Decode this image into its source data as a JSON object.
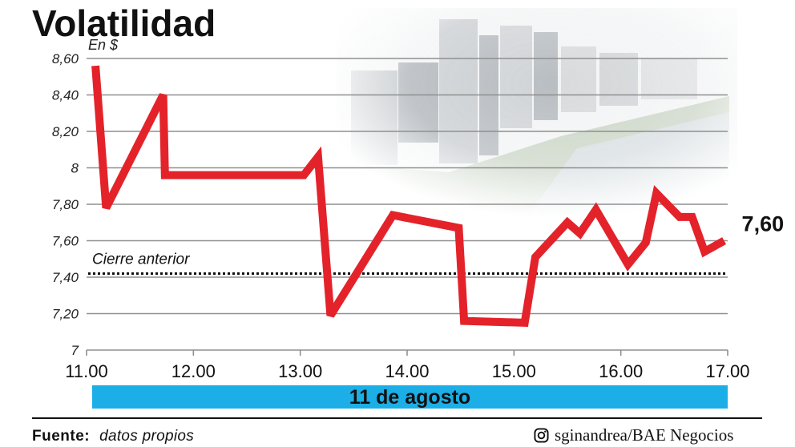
{
  "chart_data": {
    "type": "line",
    "title": "Volatilidad",
    "ylabel": "En $",
    "xlabel": "11 de agosto",
    "xlim": [
      "11.00",
      "17.00"
    ],
    "ylim": [
      7,
      8.6
    ],
    "y_ticks": [
      {
        "value": 8.6,
        "label": "8,60"
      },
      {
        "value": 8.4,
        "label": "8,40"
      },
      {
        "value": 8.2,
        "label": "8,20"
      },
      {
        "value": 8.0,
        "label": "8"
      },
      {
        "value": 7.8,
        "label": "7,80"
      },
      {
        "value": 7.6,
        "label": "7,60"
      },
      {
        "value": 7.4,
        "label": "7,40"
      },
      {
        "value": 7.2,
        "label": "7,20"
      },
      {
        "value": 7.0,
        "label": "7"
      }
    ],
    "x_ticks": [
      "11.00",
      "12.00",
      "13.00",
      "14.00",
      "15.00",
      "16.00",
      "17.00"
    ],
    "grid": true,
    "series": [
      {
        "x": [
          "11.05",
          "11.11",
          "11.43",
          "11.44",
          "13.02",
          "13.10",
          "13.17",
          "13.52",
          "14.29",
          "14.32",
          "15.06",
          "15.12",
          "15.30",
          "15.37",
          "15.46",
          "16.04",
          "16.14",
          "16.20",
          "16.33",
          "16.40",
          "16.47",
          "16.58"
        ],
        "values": [
          8.56,
          7.78,
          8.4,
          7.96,
          7.96,
          8.06,
          7.19,
          7.74,
          7.67,
          7.16,
          7.15,
          7.51,
          7.7,
          7.64,
          7.77,
          7.47,
          7.59,
          7.86,
          7.73,
          7.73,
          7.54,
          7.6
        ],
        "color": "#e4222a"
      }
    ],
    "reference_line": {
      "label": "Cierre anterior",
      "value": 7.42
    },
    "last_value_label": "7,60"
  },
  "colors": {
    "band": "#1caee6",
    "grid": "#8f8f8f",
    "reference": "#111111"
  },
  "footer": {
    "source_label": "Fuente:",
    "source_text": "datos propios",
    "credit_icon": "instagram-icon",
    "credit": "sginandrea/BAE Negocios"
  }
}
